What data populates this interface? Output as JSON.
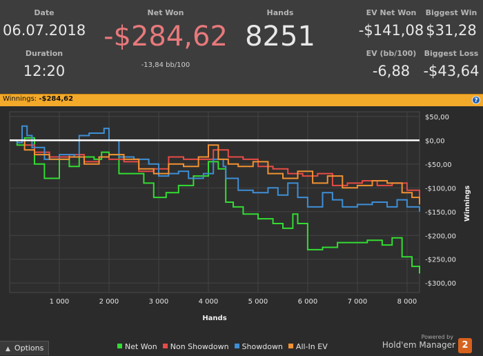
{
  "stats": {
    "date": {
      "label": "Date",
      "value": "06.07.2018"
    },
    "duration": {
      "label": "Duration",
      "value": "12:20"
    },
    "net_won": {
      "label": "Net Won",
      "value": "-$284,62",
      "sub": "-13,84 bb/100"
    },
    "hands": {
      "label": "Hands",
      "value": "8251"
    },
    "ev_net_won": {
      "label": "EV Net Won",
      "value": "-$141,08"
    },
    "biggest_win": {
      "label": "Biggest Win",
      "value": "$31,28"
    },
    "ev_bb100": {
      "label": "EV (bb/100)",
      "value": "-6,88"
    },
    "biggest_loss": {
      "label": "Biggest Loss",
      "value": "-$43,64"
    }
  },
  "winnings_bar": {
    "label": "Winnings:",
    "value": "-$284,62",
    "help": "?"
  },
  "footer": {
    "options": "Options",
    "powered_by": "Powered by",
    "brand": "Hold'em Manager",
    "logo": "2"
  },
  "colors": {
    "net_won_red": "#e8797c",
    "bar": "#f3a92a",
    "net_won_series": "#33dd33",
    "non_showdown": "#e84b45",
    "showdown": "#3e8fd6",
    "allin_ev": "#f29233"
  },
  "chart_data": {
    "type": "line",
    "xlabel": "Hands",
    "ylabel": "Winnings",
    "xlim": [
      0,
      8251
    ],
    "ylim": [
      -320,
      60
    ],
    "x_ticks": [
      1000,
      2000,
      3000,
      4000,
      5000,
      6000,
      7000,
      8000
    ],
    "x_tick_labels": [
      "1 000",
      "2 000",
      "3 000",
      "4 000",
      "5 000",
      "6 000",
      "7 000",
      "8 000"
    ],
    "y_ticks": [
      50,
      0,
      -50,
      -100,
      -150,
      -200,
      -250,
      -300
    ],
    "y_tick_labels": [
      "$50,00",
      "$0,00",
      "-$50,00",
      "-$100,00",
      "-$150,00",
      "-$200,00",
      "-$250,00",
      "-$300,00"
    ],
    "legend_position": "bottom",
    "series": [
      {
        "name": "Net Won",
        "color": "#33dd33",
        "x": [
          0,
          150,
          300,
          500,
          700,
          1000,
          1200,
          1400,
          1700,
          1850,
          2000,
          2200,
          2400,
          2700,
          2900,
          3150,
          3400,
          3700,
          4000,
          4200,
          4350,
          4500,
          4700,
          5000,
          5300,
          5500,
          5700,
          5800,
          6000,
          6300,
          6600,
          6900,
          7200,
          7500,
          7700,
          7900,
          8100,
          8251
        ],
        "y": [
          0,
          -10,
          5,
          -50,
          -80,
          -40,
          -55,
          -35,
          -40,
          -25,
          -30,
          -70,
          -70,
          -90,
          -120,
          -110,
          -95,
          -75,
          -45,
          -60,
          -130,
          -140,
          -155,
          -165,
          -175,
          -185,
          -155,
          -175,
          -230,
          -225,
          -215,
          -215,
          -210,
          -220,
          -205,
          -245,
          -265,
          -280
        ]
      },
      {
        "name": "Non Showdown",
        "color": "#e84b45",
        "x": [
          0,
          300,
          500,
          800,
          1200,
          1500,
          1800,
          2000,
          2300,
          2600,
          2900,
          3200,
          3500,
          3800,
          4100,
          4400,
          4700,
          5000,
          5300,
          5600,
          5900,
          6200,
          6500,
          6800,
          7100,
          7400,
          7700,
          8000,
          8251
        ],
        "y": [
          0,
          -10,
          -25,
          -35,
          -30,
          -45,
          -35,
          -40,
          -45,
          -65,
          -60,
          -35,
          -40,
          -40,
          -20,
          -35,
          -40,
          -55,
          -60,
          -70,
          -75,
          -70,
          -95,
          -90,
          -85,
          -95,
          -90,
          -105,
          -130
        ]
      },
      {
        "name": "Showdown",
        "color": "#3e8fd6",
        "x": [
          0,
          150,
          250,
          350,
          450,
          700,
          1000,
          1300,
          1400,
          1600,
          1900,
          2000,
          2200,
          2500,
          2800,
          3000,
          3200,
          3400,
          3600,
          3900,
          4100,
          4300,
          4350,
          4600,
          4900,
          5200,
          5400,
          5600,
          5800,
          6000,
          6300,
          6500,
          6700,
          7000,
          7300,
          7600,
          7800,
          8000,
          8251
        ],
        "y": [
          0,
          -5,
          30,
          10,
          -15,
          -40,
          -30,
          -35,
          10,
          15,
          25,
          0,
          -35,
          -40,
          -50,
          -75,
          -70,
          -65,
          -80,
          -70,
          -40,
          -55,
          -80,
          -105,
          -110,
          -100,
          -115,
          -90,
          -120,
          -140,
          -110,
          -125,
          -140,
          -135,
          -130,
          -140,
          -125,
          -140,
          -150
        ]
      },
      {
        "name": "All-In EV",
        "color": "#f29233",
        "x": [
          0,
          300,
          500,
          800,
          1200,
          1500,
          1800,
          2000,
          2300,
          2600,
          2900,
          3200,
          3500,
          3800,
          4000,
          4200,
          4400,
          4600,
          4900,
          5200,
          5500,
          5800,
          6100,
          6400,
          6700,
          7000,
          7300,
          7600,
          7900,
          8100,
          8251
        ],
        "y": [
          0,
          -20,
          -30,
          -40,
          -35,
          -50,
          -35,
          -30,
          -40,
          -60,
          -70,
          -50,
          -55,
          -35,
          -10,
          -40,
          -50,
          -55,
          -45,
          -70,
          -80,
          -65,
          -90,
          -75,
          -100,
          -95,
          -85,
          -90,
          -110,
          -120,
          -135
        ]
      }
    ]
  }
}
